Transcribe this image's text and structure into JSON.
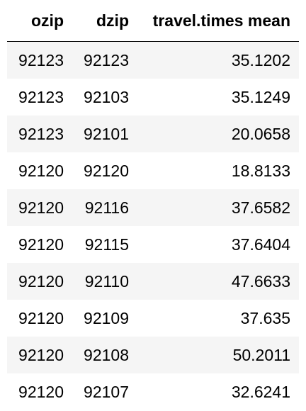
{
  "table": {
    "columns": [
      "ozip",
      "dzip",
      "travel.times mean"
    ],
    "rows": [
      [
        "92123",
        "92123",
        "35.1202"
      ],
      [
        "92123",
        "92103",
        "35.1249"
      ],
      [
        "92123",
        "92101",
        "20.0658"
      ],
      [
        "92120",
        "92120",
        "18.8133"
      ],
      [
        "92120",
        "92116",
        "37.6582"
      ],
      [
        "92120",
        "92115",
        "37.6404"
      ],
      [
        "92120",
        "92110",
        "47.6633"
      ],
      [
        "92120",
        "92109",
        "37.635"
      ],
      [
        "92120",
        "92108",
        "50.2011"
      ],
      [
        "92120",
        "92107",
        "32.6241"
      ]
    ]
  },
  "colors": {
    "stripe": "#f5f5f5",
    "rule": "#000000",
    "text": "#000000"
  }
}
